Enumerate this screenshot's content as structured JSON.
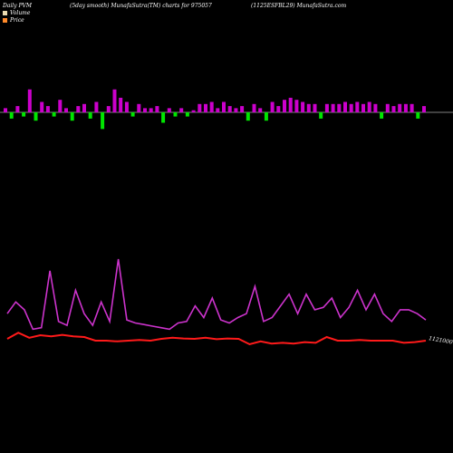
{
  "header": {
    "left": "Daily PVM",
    "middle": "(5day smooth) MunafaSutra(TM) charts for 975057",
    "right": "(1125ESFBL29) MunafaSutra.com"
  },
  "legend": [
    {
      "label": "Volume",
      "color": "#e9d9b0"
    },
    {
      "label": "Price",
      "color": "#ff8a2a"
    }
  ],
  "colors": {
    "volume_up": "#cc00cc",
    "volume_down": "#00e600",
    "volume_neutral": "#cc00cc",
    "smooth_line": "#cc33cc",
    "price_line": "#ff1a1a",
    "axis": "#aaaaaa"
  },
  "chart_data": {
    "type": "bar",
    "volume": {
      "baseline_label": "",
      "values": [
        2,
        -3,
        3,
        -2,
        11,
        -4,
        5,
        3,
        -2,
        6,
        2,
        -4,
        3,
        4,
        -3,
        5,
        -8,
        3,
        11,
        7,
        5,
        -2,
        4,
        2,
        2,
        3,
        -5,
        2,
        -2,
        2,
        -2,
        1,
        4,
        4,
        5,
        2,
        5,
        3,
        2,
        3,
        -4,
        4,
        2,
        -4,
        5,
        3,
        6,
        7,
        6,
        5,
        4,
        4,
        -3,
        4,
        4,
        4,
        5,
        4,
        5,
        4,
        5,
        4,
        -3,
        4,
        3,
        4,
        4,
        4,
        -3,
        3
      ],
      "polarity": [
        "u",
        "d",
        "u",
        "d",
        "u",
        "d",
        "u",
        "u",
        "d",
        "u",
        "u",
        "d",
        "u",
        "u",
        "d",
        "u",
        "d",
        "u",
        "u",
        "u",
        "u",
        "d",
        "u",
        "u",
        "u",
        "u",
        "d",
        "u",
        "d",
        "u",
        "d",
        "u",
        "u",
        "u",
        "u",
        "u",
        "u",
        "u",
        "u",
        "u",
        "d",
        "u",
        "u",
        "d",
        "u",
        "u",
        "u",
        "u",
        "u",
        "u",
        "u",
        "u",
        "d",
        "u",
        "u",
        "u",
        "u",
        "u",
        "u",
        "u",
        "u",
        "u",
        "d",
        "u",
        "u",
        "u",
        "u",
        "u",
        "d",
        "u"
      ]
    },
    "smoothed_volume": [
      0.3,
      0.45,
      0.35,
      0.1,
      0.12,
      0.85,
      0.2,
      0.15,
      0.6,
      0.3,
      0.15,
      0.45,
      0.2,
      1.0,
      0.22,
      0.18,
      0.16,
      0.14,
      0.12,
      0.1,
      0.18,
      0.2,
      0.4,
      0.25,
      0.5,
      0.22,
      0.18,
      0.25,
      0.3,
      0.65,
      0.2,
      0.25,
      0.4,
      0.55,
      0.3,
      0.55,
      0.35,
      0.38,
      0.5,
      0.25,
      0.38,
      0.6,
      0.35,
      0.55,
      0.3,
      0.2,
      0.35,
      0.35,
      0.3,
      0.22
    ],
    "price": [
      0.05,
      0.22,
      0.08,
      0.15,
      0.12,
      0.16,
      0.12,
      0.1,
      0.0,
      0.0,
      -0.02,
      0.0,
      0.02,
      0.0,
      0.05,
      0.08,
      0.06,
      0.05,
      0.08,
      0.04,
      0.06,
      0.05,
      -0.1,
      -0.02,
      -0.08,
      -0.06,
      -0.08,
      -0.04,
      -0.06,
      0.1,
      0.0,
      0.0,
      0.02,
      0.0,
      0.0,
      0.0,
      -0.06,
      -0.04,
      0.0
    ],
    "price_label": "1121000.00"
  }
}
